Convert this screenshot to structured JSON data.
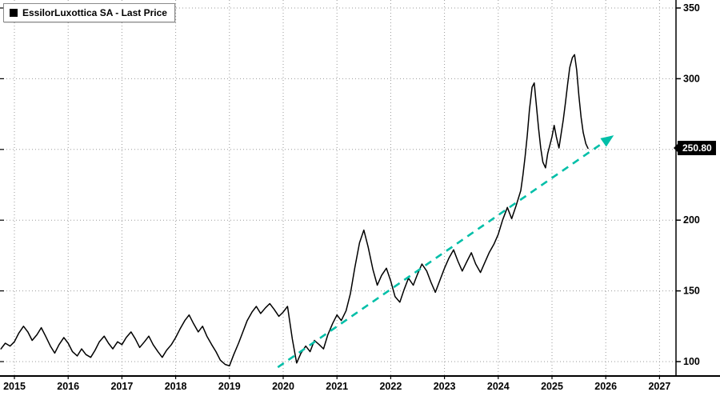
{
  "chart_data": {
    "type": "line",
    "title": "EssilorLuxottica SA - Last Price",
    "legend": "EssilorLuxottica SA - Last Price",
    "last_price": 250.8,
    "last_price_label": "250.80",
    "line_color": "#000000",
    "trend_color": "#00BFA8",
    "grid": "dotted",
    "legend_position": "top-left",
    "x_ticks": [
      2015,
      2016,
      2017,
      2018,
      2019,
      2020,
      2021,
      2022,
      2023,
      2024,
      2025,
      2026,
      2027
    ],
    "y_ticks": [
      100,
      150,
      200,
      250,
      300,
      350
    ],
    "xlim": [
      2014.73,
      2027.3
    ],
    "ylim": [
      90,
      355
    ],
    "trend_line": {
      "style": "dashed-arrow",
      "start": [
        2019.9,
        96
      ],
      "end": [
        2026.15,
        260
      ]
    },
    "series": [
      {
        "name": "EssilorLuxottica SA - Last Price",
        "points": [
          [
            2014.75,
            109
          ],
          [
            2014.83,
            113
          ],
          [
            2014.92,
            111
          ],
          [
            2015.0,
            114
          ],
          [
            2015.08,
            120
          ],
          [
            2015.17,
            125
          ],
          [
            2015.25,
            121
          ],
          [
            2015.33,
            115
          ],
          [
            2015.42,
            119
          ],
          [
            2015.5,
            124
          ],
          [
            2015.58,
            118
          ],
          [
            2015.67,
            111
          ],
          [
            2015.75,
            106
          ],
          [
            2015.83,
            112
          ],
          [
            2015.92,
            117
          ],
          [
            2016.0,
            113
          ],
          [
            2016.08,
            107
          ],
          [
            2016.17,
            104
          ],
          [
            2016.25,
            109
          ],
          [
            2016.33,
            105
          ],
          [
            2016.42,
            103
          ],
          [
            2016.5,
            108
          ],
          [
            2016.58,
            114
          ],
          [
            2016.67,
            118
          ],
          [
            2016.75,
            113
          ],
          [
            2016.83,
            109
          ],
          [
            2016.92,
            114
          ],
          [
            2017.0,
            112
          ],
          [
            2017.08,
            117
          ],
          [
            2017.17,
            121
          ],
          [
            2017.25,
            116
          ],
          [
            2017.33,
            110
          ],
          [
            2017.42,
            114
          ],
          [
            2017.5,
            118
          ],
          [
            2017.58,
            112
          ],
          [
            2017.67,
            107
          ],
          [
            2017.75,
            103
          ],
          [
            2017.83,
            108
          ],
          [
            2017.92,
            112
          ],
          [
            2018.0,
            117
          ],
          [
            2018.08,
            123
          ],
          [
            2018.17,
            129
          ],
          [
            2018.25,
            133
          ],
          [
            2018.33,
            127
          ],
          [
            2018.42,
            121
          ],
          [
            2018.5,
            125
          ],
          [
            2018.58,
            118
          ],
          [
            2018.67,
            112
          ],
          [
            2018.75,
            107
          ],
          [
            2018.83,
            101
          ],
          [
            2018.92,
            98
          ],
          [
            2019.0,
            97
          ],
          [
            2019.08,
            105
          ],
          [
            2019.17,
            113
          ],
          [
            2019.25,
            121
          ],
          [
            2019.33,
            129
          ],
          [
            2019.42,
            135
          ],
          [
            2019.5,
            139
          ],
          [
            2019.58,
            134
          ],
          [
            2019.67,
            138
          ],
          [
            2019.75,
            141
          ],
          [
            2019.83,
            137
          ],
          [
            2019.92,
            132
          ],
          [
            2020.0,
            135
          ],
          [
            2020.08,
            139
          ],
          [
            2020.17,
            116
          ],
          [
            2020.25,
            99
          ],
          [
            2020.33,
            106
          ],
          [
            2020.42,
            111
          ],
          [
            2020.5,
            107
          ],
          [
            2020.58,
            115
          ],
          [
            2020.67,
            112
          ],
          [
            2020.75,
            109
          ],
          [
            2020.83,
            119
          ],
          [
            2020.92,
            127
          ],
          [
            2021.0,
            133
          ],
          [
            2021.08,
            129
          ],
          [
            2021.17,
            136
          ],
          [
            2021.25,
            148
          ],
          [
            2021.33,
            166
          ],
          [
            2021.42,
            184
          ],
          [
            2021.5,
            193
          ],
          [
            2021.58,
            181
          ],
          [
            2021.67,
            165
          ],
          [
            2021.75,
            154
          ],
          [
            2021.83,
            161
          ],
          [
            2021.92,
            166
          ],
          [
            2022.0,
            157
          ],
          [
            2022.08,
            146
          ],
          [
            2022.17,
            142
          ],
          [
            2022.25,
            151
          ],
          [
            2022.33,
            159
          ],
          [
            2022.42,
            154
          ],
          [
            2022.5,
            162
          ],
          [
            2022.58,
            169
          ],
          [
            2022.67,
            164
          ],
          [
            2022.75,
            156
          ],
          [
            2022.83,
            149
          ],
          [
            2022.92,
            158
          ],
          [
            2023.0,
            166
          ],
          [
            2023.08,
            173
          ],
          [
            2023.17,
            179
          ],
          [
            2023.25,
            171
          ],
          [
            2023.33,
            164
          ],
          [
            2023.42,
            171
          ],
          [
            2023.5,
            177
          ],
          [
            2023.58,
            169
          ],
          [
            2023.67,
            163
          ],
          [
            2023.75,
            170
          ],
          [
            2023.83,
            177
          ],
          [
            2023.92,
            183
          ],
          [
            2024.0,
            190
          ],
          [
            2024.08,
            200
          ],
          [
            2024.17,
            209
          ],
          [
            2024.25,
            201
          ],
          [
            2024.33,
            210
          ],
          [
            2024.42,
            221
          ],
          [
            2024.46,
            232
          ],
          [
            2024.5,
            245
          ],
          [
            2024.54,
            260
          ],
          [
            2024.58,
            278
          ],
          [
            2024.63,
            294
          ],
          [
            2024.67,
            297
          ],
          [
            2024.71,
            281
          ],
          [
            2024.75,
            265
          ],
          [
            2024.79,
            251
          ],
          [
            2024.83,
            241
          ],
          [
            2024.88,
            237
          ],
          [
            2024.92,
            247
          ],
          [
            2024.96,
            253
          ],
          [
            2025.0,
            259
          ],
          [
            2025.04,
            267
          ],
          [
            2025.08,
            259
          ],
          [
            2025.13,
            251
          ],
          [
            2025.17,
            261
          ],
          [
            2025.21,
            271
          ],
          [
            2025.25,
            283
          ],
          [
            2025.29,
            296
          ],
          [
            2025.33,
            308
          ],
          [
            2025.38,
            315
          ],
          [
            2025.42,
            317
          ],
          [
            2025.46,
            306
          ],
          [
            2025.5,
            288
          ],
          [
            2025.54,
            273
          ],
          [
            2025.58,
            262
          ],
          [
            2025.63,
            254
          ],
          [
            2025.67,
            250.8
          ]
        ]
      }
    ]
  }
}
